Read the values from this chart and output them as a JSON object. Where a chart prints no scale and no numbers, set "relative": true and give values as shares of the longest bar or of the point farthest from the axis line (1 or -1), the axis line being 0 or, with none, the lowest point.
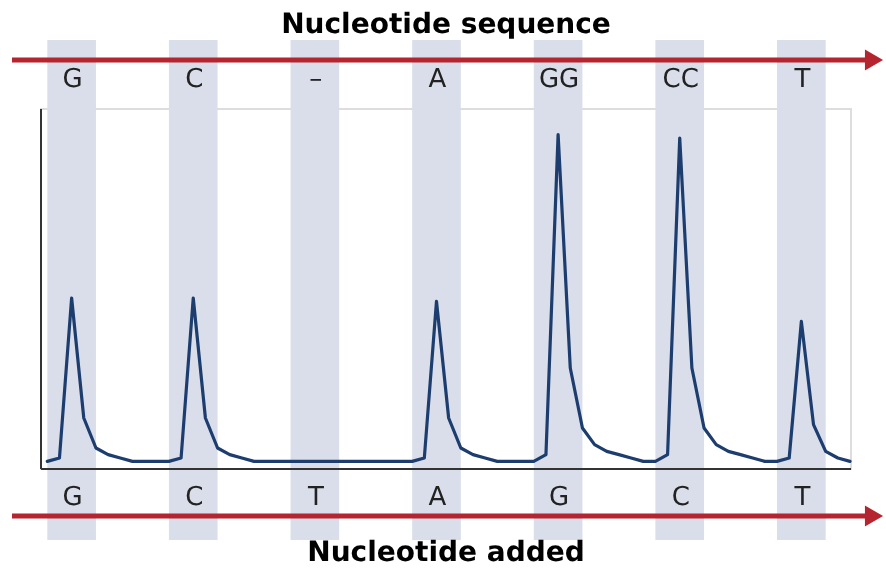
{
  "chart_data": {
    "type": "line",
    "relative": true,
    "xlabel": "Nucleotide added",
    "x2label": "Nucleotide sequence",
    "categories": [
      null,
      null,
      "G",
      null,
      null,
      null,
      null,
      null,
      null,
      null,
      null,
      null,
      "C",
      null,
      null,
      null,
      null,
      null,
      null,
      null,
      null,
      null,
      "T",
      null,
      null,
      null,
      null,
      null,
      null,
      null,
      null,
      null,
      "A",
      null,
      null,
      null,
      null,
      null,
      null,
      null,
      null,
      null,
      "G",
      null,
      null,
      null,
      null,
      null,
      null,
      null,
      null,
      null,
      "C",
      null,
      null,
      null,
      null,
      null,
      null,
      null,
      null,
      null,
      "T",
      null,
      null,
      null,
      null
    ],
    "annotations": [
      "G",
      "C",
      "–",
      "A",
      "GG",
      "CC",
      "T"
    ],
    "line_style": "solid",
    "series": [
      {
        "color": "#1c3d6e",
        "values": [
          0.02,
          0.03,
          0.51,
          0.15,
          0.06,
          0.04,
          0.03,
          0.02,
          0.02,
          0.02,
          0.02,
          0.03,
          0.51,
          0.15,
          0.06,
          0.04,
          0.03,
          0.02,
          0.02,
          0.02,
          0.02,
          0.02,
          0.02,
          0.02,
          0.02,
          0.02,
          0.02,
          0.02,
          0.02,
          0.02,
          0.02,
          0.03,
          0.5,
          0.15,
          0.06,
          0.04,
          0.03,
          0.02,
          0.02,
          0.02,
          0.02,
          0.04,
          1.0,
          0.3,
          0.12,
          0.07,
          0.05,
          0.04,
          0.03,
          0.02,
          0.02,
          0.04,
          0.99,
          0.3,
          0.12,
          0.07,
          0.05,
          0.04,
          0.03,
          0.02,
          0.02,
          0.03,
          0.44,
          0.13,
          0.05,
          0.03,
          0.02
        ]
      }
    ]
  }
}
